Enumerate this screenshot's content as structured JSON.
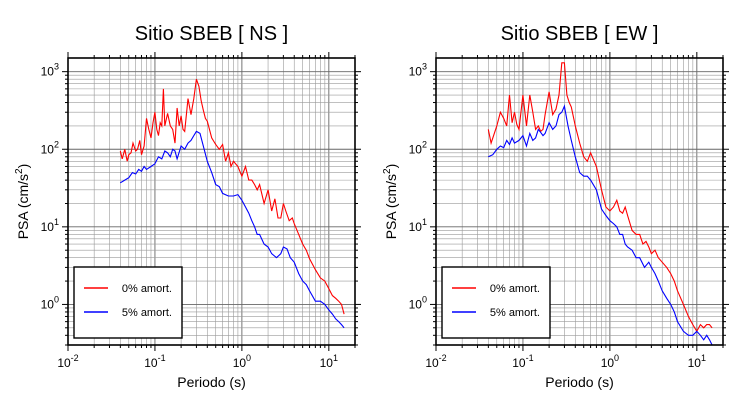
{
  "chart_data": [
    {
      "type": "line",
      "title": "Sitio SBEB [ NS ]",
      "xlabel": "Periodo (s)",
      "ylabel_base": "PSA (cm/s",
      "ylabel_sup": "2",
      "ylabel_end": ")",
      "xscale": "log",
      "yscale": "log",
      "xlim": [
        0.01,
        20
      ],
      "ylim": [
        0.3,
        1500
      ],
      "grid": true,
      "legend_placement": "bottom-left",
      "x_tick_labels": [
        {
          "base": "10",
          "exp": "-2"
        },
        {
          "base": "10",
          "exp": "-1"
        },
        {
          "base": "10",
          "exp": "0"
        },
        {
          "base": "10",
          "exp": "1"
        }
      ],
      "y_tick_labels": [
        {
          "base": "10",
          "exp": "0"
        },
        {
          "base": "10",
          "exp": "1"
        },
        {
          "base": "10",
          "exp": "2"
        },
        {
          "base": "10",
          "exp": "3"
        }
      ],
      "series": [
        {
          "name": "0% amort.",
          "color": "#ff0000",
          "x": [
            0.04,
            0.042,
            0.045,
            0.048,
            0.05,
            0.053,
            0.056,
            0.06,
            0.063,
            0.067,
            0.07,
            0.075,
            0.08,
            0.085,
            0.09,
            0.095,
            0.1,
            0.105,
            0.11,
            0.115,
            0.12,
            0.125,
            0.13,
            0.14,
            0.15,
            0.16,
            0.17,
            0.18,
            0.19,
            0.2,
            0.21,
            0.22,
            0.24,
            0.26,
            0.28,
            0.3,
            0.32,
            0.34,
            0.36,
            0.38,
            0.4,
            0.45,
            0.5,
            0.55,
            0.6,
            0.65,
            0.7,
            0.75,
            0.8,
            0.9,
            1.0,
            1.1,
            1.2,
            1.3,
            1.4,
            1.5,
            1.6,
            1.8,
            2.0,
            2.2,
            2.4,
            2.6,
            2.8,
            3.0,
            3.2,
            3.5,
            3.8,
            4.0,
            4.5,
            5.0,
            5.5,
            6.0,
            7.0,
            8.0,
            9.0,
            10.0,
            11.0,
            12.0,
            13.0,
            14.0,
            15.0
          ],
          "y": [
            95,
            75,
            100,
            70,
            85,
            90,
            120,
            95,
            100,
            130,
            85,
            110,
            250,
            180,
            140,
            220,
            300,
            180,
            150,
            220,
            200,
            600,
            200,
            290,
            200,
            180,
            120,
            340,
            200,
            270,
            180,
            170,
            450,
            280,
            450,
            800,
            650,
            420,
            320,
            250,
            230,
            140,
            115,
            100,
            115,
            70,
            90,
            60,
            70,
            60,
            45,
            60,
            40,
            40,
            35,
            30,
            35,
            20,
            30,
            16,
            23,
            13,
            13,
            20,
            16,
            12,
            13,
            11,
            8,
            6,
            5,
            3.9,
            2.8,
            2.2,
            2.0,
            1.6,
            1.3,
            1.2,
            1.1,
            1.0,
            0.75
          ]
        },
        {
          "name": "5% amort.",
          "color": "#0000ff",
          "x": [
            0.04,
            0.045,
            0.05,
            0.055,
            0.06,
            0.065,
            0.07,
            0.075,
            0.08,
            0.09,
            0.1,
            0.11,
            0.12,
            0.13,
            0.14,
            0.15,
            0.16,
            0.17,
            0.18,
            0.2,
            0.22,
            0.24,
            0.26,
            0.28,
            0.3,
            0.33,
            0.36,
            0.4,
            0.45,
            0.5,
            0.55,
            0.6,
            0.7,
            0.8,
            0.9,
            1.0,
            1.1,
            1.2,
            1.3,
            1.4,
            1.5,
            1.6,
            1.8,
            2.0,
            2.2,
            2.5,
            2.8,
            3.0,
            3.3,
            3.6,
            4.0,
            4.5,
            5.0,
            5.5,
            6.0,
            7.0,
            8.0,
            9.0,
            10.0,
            11.0,
            12.0,
            13.0,
            14.0,
            15.0
          ],
          "y": [
            37,
            40,
            43,
            50,
            48,
            55,
            52,
            60,
            55,
            60,
            65,
            80,
            75,
            95,
            90,
            80,
            100,
            95,
            75,
            110,
            100,
            120,
            130,
            150,
            170,
            160,
            110,
            70,
            50,
            35,
            33,
            27,
            25,
            25,
            26,
            22,
            18,
            15,
            12,
            10,
            8,
            8,
            6,
            5.5,
            4.5,
            4,
            4.5,
            5.5,
            5.2,
            4,
            3.5,
            2.5,
            2.0,
            1.8,
            1.5,
            1.1,
            1.1,
            1.0,
            0.85,
            0.75,
            0.65,
            0.6,
            0.55,
            0.5
          ]
        }
      ]
    },
    {
      "type": "line",
      "title": "Sitio SBEB [ EW ]",
      "xlabel": "Periodo (s)",
      "ylabel_base": "PSA (cm/s",
      "ylabel_sup": "2",
      "ylabel_end": ")",
      "xscale": "log",
      "yscale": "log",
      "xlim": [
        0.01,
        20
      ],
      "ylim": [
        0.3,
        1500
      ],
      "grid": true,
      "legend_placement": "bottom-left",
      "x_tick_labels": [
        {
          "base": "10",
          "exp": "-2"
        },
        {
          "base": "10",
          "exp": "-1"
        },
        {
          "base": "10",
          "exp": "0"
        },
        {
          "base": "10",
          "exp": "1"
        }
      ],
      "y_tick_labels": [
        {
          "base": "10",
          "exp": "0"
        },
        {
          "base": "10",
          "exp": "1"
        },
        {
          "base": "10",
          "exp": "2"
        },
        {
          "base": "10",
          "exp": "3"
        }
      ],
      "series": [
        {
          "name": "0% amort.",
          "color": "#ff0000",
          "x": [
            0.04,
            0.043,
            0.046,
            0.05,
            0.055,
            0.06,
            0.065,
            0.07,
            0.075,
            0.08,
            0.085,
            0.09,
            0.1,
            0.11,
            0.12,
            0.13,
            0.14,
            0.15,
            0.16,
            0.17,
            0.18,
            0.2,
            0.22,
            0.24,
            0.26,
            0.28,
            0.3,
            0.32,
            0.34,
            0.36,
            0.4,
            0.45,
            0.5,
            0.55,
            0.6,
            0.7,
            0.8,
            0.9,
            1.0,
            1.1,
            1.2,
            1.3,
            1.4,
            1.5,
            1.6,
            1.8,
            2.0,
            2.2,
            2.4,
            2.6,
            2.8,
            3.0,
            3.3,
            3.6,
            4.0,
            4.5,
            5.0,
            5.5,
            6.0,
            7.0,
            8.0,
            9.0,
            10.0,
            11.0,
            12.0,
            13.0,
            14.0,
            15.0
          ],
          "y": [
            180,
            120,
            150,
            200,
            300,
            250,
            200,
            500,
            220,
            300,
            210,
            180,
            500,
            200,
            500,
            300,
            180,
            200,
            170,
            180,
            280,
            550,
            280,
            330,
            500,
            1300,
            1300,
            500,
            400,
            350,
            200,
            120,
            80,
            70,
            90,
            60,
            30,
            18,
            16,
            18,
            22,
            16,
            15,
            18,
            14,
            9,
            8,
            8,
            6,
            6.5,
            5.5,
            4.5,
            5,
            4,
            3.5,
            3,
            2.5,
            2,
            1.5,
            1.0,
            0.7,
            0.55,
            0.45,
            0.55,
            0.5,
            0.55,
            0.55,
            0.5
          ]
        },
        {
          "name": "5% amort.",
          "color": "#0000ff",
          "x": [
            0.04,
            0.045,
            0.05,
            0.055,
            0.06,
            0.065,
            0.07,
            0.075,
            0.08,
            0.09,
            0.1,
            0.11,
            0.12,
            0.13,
            0.14,
            0.15,
            0.16,
            0.17,
            0.18,
            0.2,
            0.22,
            0.24,
            0.26,
            0.28,
            0.3,
            0.33,
            0.36,
            0.4,
            0.45,
            0.5,
            0.55,
            0.6,
            0.7,
            0.8,
            0.9,
            1.0,
            1.1,
            1.2,
            1.3,
            1.4,
            1.5,
            1.6,
            1.8,
            2.0,
            2.2,
            2.5,
            2.8,
            3.0,
            3.3,
            3.6,
            4.0,
            4.5,
            5.0,
            5.5,
            6.0,
            7.0,
            8.0,
            9.0,
            10.0,
            11.0,
            12.0,
            13.0,
            14.0,
            15.0
          ],
          "y": [
            80,
            85,
            100,
            110,
            105,
            130,
            115,
            140,
            120,
            130,
            150,
            110,
            160,
            130,
            140,
            180,
            165,
            150,
            160,
            220,
            180,
            200,
            280,
            300,
            360,
            200,
            130,
            80,
            50,
            45,
            45,
            40,
            30,
            17,
            14,
            12,
            11,
            10,
            8,
            8,
            6,
            5.5,
            5,
            4,
            4,
            3,
            3.5,
            3,
            2.5,
            2,
            1.5,
            1.2,
            1.0,
            0.8,
            0.6,
            0.45,
            0.4,
            0.4,
            0.45,
            0.4,
            0.35,
            0.4,
            0.35,
            0.3
          ]
        }
      ]
    }
  ]
}
